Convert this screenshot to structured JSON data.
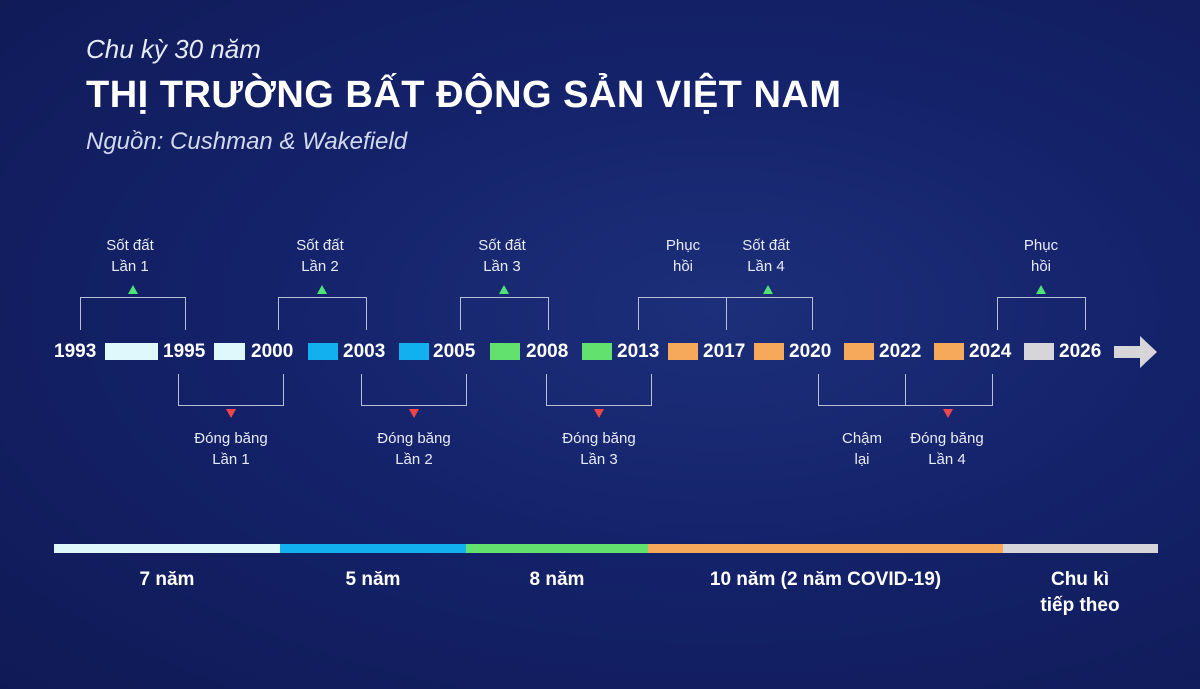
{
  "header": {
    "subtitle": "Chu kỳ 30 năm",
    "title": "THỊ TRƯỜNG BẤT ĐỘNG SẢN VIỆT NAM",
    "source": "Nguồn: Cushman & Wakefield"
  },
  "years": [
    "1993",
    "1995",
    "2000",
    "2003",
    "2005",
    "2008",
    "2013",
    "2017",
    "2020",
    "2022",
    "2024",
    "2026"
  ],
  "upper_labels": [
    [
      "Sốt đất",
      "Lần 1"
    ],
    [
      "Sốt đất",
      "Lần 2"
    ],
    [
      "Sốt đất",
      "Lần 3"
    ],
    [
      "Phục",
      "hồi"
    ],
    [
      "Sốt đất",
      "Lần 4"
    ],
    [
      "Phục",
      "hồi"
    ]
  ],
  "lower_labels": [
    [
      "Đóng băng",
      "Lần 1"
    ],
    [
      "Đóng băng",
      "Lần 2"
    ],
    [
      "Đóng băng",
      "Lần 3"
    ],
    [
      "Chậm",
      "lại"
    ],
    [
      "Đóng băng",
      "Lần 4"
    ]
  ],
  "periods": [
    {
      "label": "7 năm",
      "color": "#dff8fb"
    },
    {
      "label": "5 năm",
      "color": "#12b0ee"
    },
    {
      "label": "8 năm",
      "color": "#63e16f"
    },
    {
      "label": "10 năm (2 năm COVID-19)",
      "color": "#f6a85b"
    },
    {
      "label": "Chu kì tiếp theo",
      "line1": "Chu kì",
      "line2": "tiếp theo",
      "color": "#d6d6da"
    }
  ]
}
